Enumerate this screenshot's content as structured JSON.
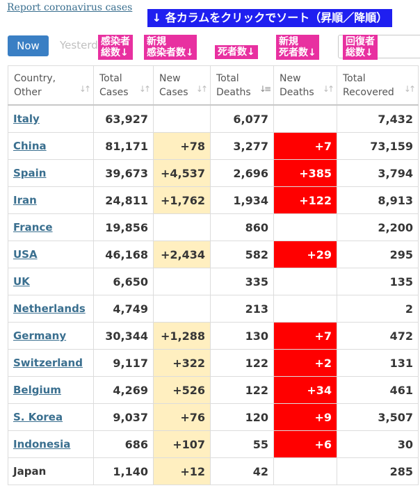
{
  "header": {
    "report_link": "Report coronavirus cases",
    "banner": "↓ 各カラムをクリックでソート（昇順／降順）",
    "now_tab": "Now",
    "yesterday_tab": "Yesterd"
  },
  "annotations": {
    "total_cases": "感染者\n総数↓",
    "new_cases": "新規\n感染者数↓",
    "total_deaths": "死者数↓",
    "new_deaths": "新規\n死者数↓",
    "total_recovered": "回復者\n総数↓"
  },
  "table": {
    "columns": [
      "Country,\nOther",
      "Total\nCases",
      "New\nCases",
      "Total\nDeaths",
      "New\nDeaths",
      "Total\nRecovered"
    ],
    "rows": [
      {
        "country": "Italy",
        "total_cases": "63,927",
        "new_cases": "",
        "total_deaths": "6,077",
        "new_deaths": "",
        "total_recovered": "7,432",
        "link": true
      },
      {
        "country": "China",
        "total_cases": "81,171",
        "new_cases": "+78",
        "total_deaths": "3,277",
        "new_deaths": "+7",
        "total_recovered": "73,159",
        "link": true
      },
      {
        "country": "Spain",
        "total_cases": "39,673",
        "new_cases": "+4,537",
        "total_deaths": "2,696",
        "new_deaths": "+385",
        "total_recovered": "3,794",
        "link": true
      },
      {
        "country": "Iran",
        "total_cases": "24,811",
        "new_cases": "+1,762",
        "total_deaths": "1,934",
        "new_deaths": "+122",
        "total_recovered": "8,913",
        "link": true
      },
      {
        "country": "France",
        "total_cases": "19,856",
        "new_cases": "",
        "total_deaths": "860",
        "new_deaths": "",
        "total_recovered": "2,200",
        "link": true
      },
      {
        "country": "USA",
        "total_cases": "46,168",
        "new_cases": "+2,434",
        "total_deaths": "582",
        "new_deaths": "+29",
        "total_recovered": "295",
        "link": true
      },
      {
        "country": "UK",
        "total_cases": "6,650",
        "new_cases": "",
        "total_deaths": "335",
        "new_deaths": "",
        "total_recovered": "135",
        "link": true
      },
      {
        "country": "Netherlands",
        "total_cases": "4,749",
        "new_cases": "",
        "total_deaths": "213",
        "new_deaths": "",
        "total_recovered": "2",
        "link": true
      },
      {
        "country": "Germany",
        "total_cases": "30,344",
        "new_cases": "+1,288",
        "total_deaths": "130",
        "new_deaths": "+7",
        "total_recovered": "472",
        "link": true
      },
      {
        "country": "Switzerland",
        "total_cases": "9,117",
        "new_cases": "+322",
        "total_deaths": "122",
        "new_deaths": "+2",
        "total_recovered": "131",
        "link": true
      },
      {
        "country": "Belgium",
        "total_cases": "4,269",
        "new_cases": "+526",
        "total_deaths": "122",
        "new_deaths": "+34",
        "total_recovered": "461",
        "link": true
      },
      {
        "country": "S. Korea",
        "total_cases": "9,037",
        "new_cases": "+76",
        "total_deaths": "120",
        "new_deaths": "+9",
        "total_recovered": "3,507",
        "link": true
      },
      {
        "country": "Indonesia",
        "total_cases": "686",
        "new_cases": "+107",
        "total_deaths": "55",
        "new_deaths": "+6",
        "total_recovered": "30",
        "link": true
      },
      {
        "country": "Japan",
        "total_cases": "1,140",
        "new_cases": "+12",
        "total_deaths": "42",
        "new_deaths": "",
        "total_recovered": "285",
        "link": false
      }
    ]
  },
  "colors": {
    "new_cases_bg": "#ffefc0",
    "new_deaths_bg": "#ff0000",
    "annotation_bg": "#e830a0",
    "banner_bg": "#1f1ff0",
    "now_button_bg": "#3a7fc4",
    "link": "#3a6f8f"
  }
}
